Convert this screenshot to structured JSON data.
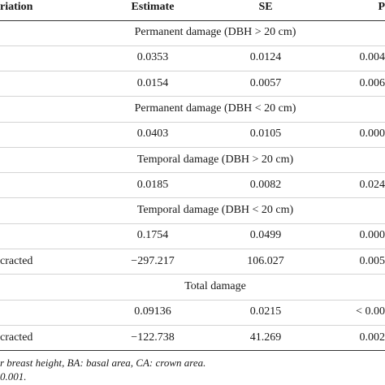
{
  "table": {
    "header": [
      "riation",
      "Estimate",
      "SE",
      "P"
    ],
    "rows": [
      {
        "section": "Permanent damage (DBH > 20 cm)"
      },
      {
        "cells": [
          null,
          "0.0353",
          "0.0124",
          "0.004"
        ]
      },
      {
        "cells": [
          null,
          "0.0154",
          "0.0057",
          "0.006"
        ]
      },
      {
        "section": "Permanent damage (DBH < 20 cm)"
      },
      {
        "cells": [
          null,
          "0.0403",
          "0.0105",
          "0.000"
        ]
      },
      {
        "section": "Temporal damage (DBH > 20 cm)"
      },
      {
        "cells": [
          null,
          "0.0185",
          "0.0082",
          "0.024"
        ]
      },
      {
        "section": "Temporal damage (DBH < 20 cm)"
      },
      {
        "cells": [
          null,
          "0.1754",
          "0.0499",
          "0.000"
        ]
      },
      {
        "cells": [
          "cracted",
          "−297.217",
          "106.027",
          "0.005"
        ]
      },
      {
        "section": "Total damage"
      },
      {
        "cells": [
          null,
          "0.09136",
          "0.0215",
          "< 0.00"
        ]
      },
      {
        "cells": [
          "cracted",
          "−122.738",
          "41.269",
          "0.002"
        ]
      }
    ]
  },
  "footnotes": [
    "r breast height, BA: basal area, CA: crown area.",
    "0.001."
  ]
}
